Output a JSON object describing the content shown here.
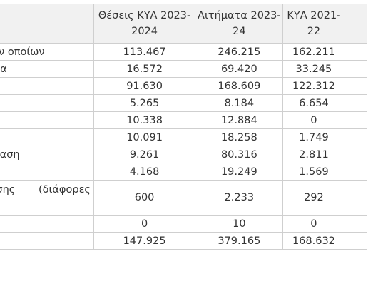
{
  "table": {
    "headers": {
      "label": "",
      "col_a_line1": "Θέσεις ΚΥΑ 2023-",
      "col_a_line2": "2024",
      "col_b_line1": "Αιτήματα 2023-",
      "col_b_line2": "24",
      "col_c_line1": "ΚΥΑ 2021-",
      "col_c_line2": "22",
      "col_d": ""
    },
    "rows": [
      {
        "label": "ων οποίων",
        "a": "113.467",
        "b": "246.215",
        "c": "162.211"
      },
      {
        "label": "σία",
        "a": "16.572",
        "b": "69.420",
        "c": "33.245"
      },
      {
        "label": "",
        "a": "91.630",
        "b": "168.609",
        "c": "122.312"
      },
      {
        "label": "",
        "a": "5.265",
        "b": "8.184",
        "c": "6.654"
      },
      {
        "label": "",
        "a": "10.338",
        "b": "12.884",
        "c": "0"
      },
      {
        "label": "",
        "a": "10.091",
        "b": "18.258",
        "c": "1.749"
      },
      {
        "label": "τίαση",
        "a": "9.261",
        "b": "80.316",
        "c": "2.811"
      },
      {
        "label": "",
        "a": "4.168",
        "b": "19.249",
        "c": "1.569"
      },
      {
        "label_part1": "υσης",
        "label_part2": "(διάφορες",
        "a": "600",
        "b": "2.233",
        "c": "292"
      },
      {
        "label": "",
        "a": "0",
        "b": "10",
        "c": "0"
      },
      {
        "label": "",
        "a": "147.925",
        "b": "379.165",
        "c": "168.632"
      }
    ]
  }
}
